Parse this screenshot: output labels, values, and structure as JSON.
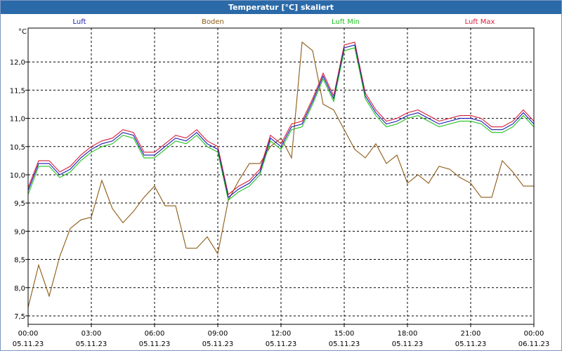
{
  "window": {
    "title": "Temperatur [°C] skaliert"
  },
  "chart_data": {
    "type": "line",
    "title": "Temperatur [°C] skaliert",
    "ylabel": "°C",
    "ylim": [
      7.35,
      12.6
    ],
    "y_ticks": [
      "7,5",
      "8,0",
      "8,5",
      "9,0",
      "9,5",
      "10,0",
      "10,5",
      "11,0",
      "11,5",
      "12,0"
    ],
    "y_tick_values": [
      7.5,
      8.0,
      8.5,
      9.0,
      9.5,
      10.0,
      10.5,
      11.0,
      11.5,
      12.0
    ],
    "x_ticks": [
      {
        "time": "00:00",
        "date": "05.11.23"
      },
      {
        "time": "03:00",
        "date": "05.11.23"
      },
      {
        "time": "06:00",
        "date": "05.11.23"
      },
      {
        "time": "09:00",
        "date": "05.11.23"
      },
      {
        "time": "12:00",
        "date": "05.11.23"
      },
      {
        "time": "15:00",
        "date": "05.11.23"
      },
      {
        "time": "18:00",
        "date": "05.11.23"
      },
      {
        "time": "21:00",
        "date": "05.11.23"
      },
      {
        "time": "00:00",
        "date": "06.11.23"
      }
    ],
    "grid": true,
    "legend_position": "top",
    "x_hours": [
      0,
      0.5,
      1,
      1.5,
      2,
      2.5,
      3,
      3.5,
      4,
      4.5,
      5,
      5.5,
      6,
      6.5,
      7,
      7.5,
      8,
      8.5,
      9,
      9.5,
      10,
      10.5,
      11,
      11.5,
      12,
      12.5,
      13,
      13.5,
      14,
      14.5,
      15,
      15.5,
      16,
      16.5,
      17,
      17.5,
      18,
      18.5,
      19,
      19.5,
      20,
      20.5,
      21,
      21.5,
      22,
      22.5,
      23,
      23.5,
      24
    ],
    "series": [
      {
        "name": "Luft",
        "color": "#1a1ab0",
        "values": [
          9.72,
          10.2,
          10.2,
          10.0,
          10.1,
          10.3,
          10.45,
          10.55,
          10.6,
          10.75,
          10.7,
          10.35,
          10.35,
          10.5,
          10.65,
          10.6,
          10.75,
          10.55,
          10.45,
          9.6,
          9.75,
          9.85,
          10.05,
          10.65,
          10.5,
          10.85,
          10.9,
          11.3,
          11.75,
          11.35,
          12.25,
          12.3,
          11.4,
          11.1,
          10.9,
          10.95,
          11.05,
          11.1,
          11.0,
          10.9,
          10.95,
          11.0,
          11.0,
          10.95,
          10.8,
          10.8,
          10.9,
          11.1,
          10.9
        ]
      },
      {
        "name": "Boden",
        "color": "#8b5a14",
        "values": [
          7.65,
          8.4,
          7.85,
          8.55,
          9.05,
          9.2,
          9.25,
          9.9,
          9.4,
          9.15,
          9.35,
          9.6,
          9.8,
          9.45,
          9.45,
          8.7,
          8.7,
          8.9,
          8.6,
          9.55,
          9.9,
          10.2,
          10.2,
          10.5,
          10.65,
          10.3,
          12.35,
          12.2,
          11.25,
          11.15,
          10.8,
          10.45,
          10.3,
          10.55,
          10.2,
          10.35,
          9.85,
          10.0,
          9.85,
          10.15,
          10.1,
          9.95,
          9.85,
          9.6,
          9.6,
          10.25,
          10.05,
          9.8,
          9.8
        ]
      },
      {
        "name": "Luft Min",
        "color": "#1fbf1f",
        "values": [
          9.65,
          10.15,
          10.15,
          9.95,
          10.05,
          10.25,
          10.4,
          10.5,
          10.55,
          10.7,
          10.65,
          10.3,
          10.3,
          10.45,
          10.6,
          10.55,
          10.7,
          10.5,
          10.4,
          9.55,
          9.7,
          9.8,
          10.0,
          10.6,
          10.45,
          10.8,
          10.85,
          11.25,
          11.7,
          11.3,
          12.2,
          12.25,
          11.35,
          11.05,
          10.85,
          10.9,
          11.0,
          11.05,
          10.95,
          10.85,
          10.9,
          10.95,
          10.95,
          10.9,
          10.75,
          10.75,
          10.85,
          11.05,
          10.85
        ]
      },
      {
        "name": "Luft Max",
        "color": "#d81c3a",
        "values": [
          9.77,
          10.25,
          10.25,
          10.05,
          10.15,
          10.35,
          10.5,
          10.6,
          10.65,
          10.8,
          10.75,
          10.4,
          10.4,
          10.55,
          10.7,
          10.65,
          10.8,
          10.6,
          10.5,
          9.65,
          9.8,
          9.9,
          10.1,
          10.7,
          10.55,
          10.9,
          10.95,
          11.35,
          11.8,
          11.4,
          12.3,
          12.35,
          11.45,
          11.15,
          10.95,
          11.0,
          11.1,
          11.15,
          11.05,
          10.95,
          11.0,
          11.05,
          11.05,
          11.0,
          10.85,
          10.85,
          10.95,
          11.15,
          10.95
        ]
      }
    ]
  }
}
